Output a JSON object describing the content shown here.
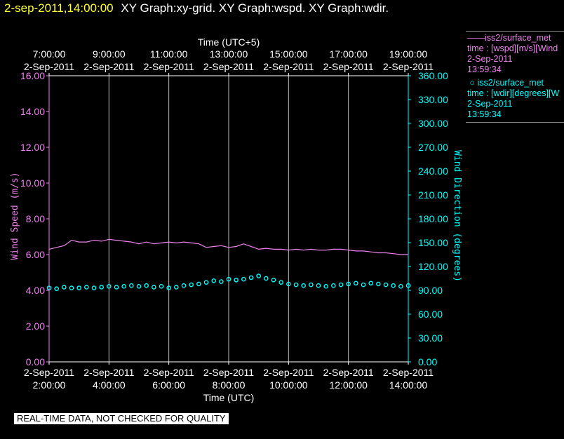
{
  "header": {
    "timestamp": "2-sep-2011,14:00:00",
    "titles": "XY Graph:xy-grid.  XY Graph:wspd.  XY Graph:wdir."
  },
  "legend": {
    "wspd": {
      "marker": "——",
      "source": "iss2/surface_met",
      "desc": "time : [wspd][m/s][Wind",
      "date": "2-Sep-2011",
      "time": "13:59:34",
      "color": "#ee82ee"
    },
    "wdir": {
      "marker": "○",
      "source": "iss2/surface_met",
      "desc": "time : [wdir][degrees][W",
      "date": "2-Sep-2011",
      "time": "13:59:34",
      "color": "#00ffff"
    }
  },
  "quality_notice": "REAL-TIME DATA, NOT CHECKED FOR QUALITY",
  "chart_data": {
    "type": "line",
    "top_axis": {
      "label": "Time (UTC+5)",
      "ticks": [
        {
          "time": "7:00:00",
          "date": "2-Sep-2011"
        },
        {
          "time": "9:00:00",
          "date": "2-Sep-2011"
        },
        {
          "time": "11:00:00",
          "date": "2-Sep-2011"
        },
        {
          "time": "13:00:00",
          "date": "2-Sep-2011"
        },
        {
          "time": "15:00:00",
          "date": "2-Sep-2011"
        },
        {
          "time": "17:00:00",
          "date": "2-Sep-2011"
        },
        {
          "time": "19:00:00",
          "date": "2-Sep-2011"
        }
      ]
    },
    "bottom_axis": {
      "label": "Time (UTC)",
      "range_hours": [
        2,
        14
      ],
      "ticks": [
        {
          "hour": 2,
          "date": "2-Sep-2011",
          "time": "2:00:00"
        },
        {
          "hour": 4,
          "date": "2-Sep-2011",
          "time": "4:00:00"
        },
        {
          "hour": 6,
          "date": "2-Sep-2011",
          "time": "6:00:00"
        },
        {
          "hour": 8,
          "date": "2-Sep-2011",
          "time": "8:00:00"
        },
        {
          "hour": 10,
          "date": "2-Sep-2011",
          "time": "10:00:00"
        },
        {
          "hour": 12,
          "date": "2-Sep-2011",
          "time": "12:00:00"
        },
        {
          "hour": 14,
          "date": "2-Sep-2011",
          "time": "14:00:00"
        }
      ]
    },
    "left_axis": {
      "label": "Wind Speed (m/s)",
      "ylim": [
        0,
        16
      ],
      "ticks": [
        "0.00",
        "2.00",
        "4.00",
        "6.00",
        "8.00",
        "10.00",
        "12.00",
        "14.00",
        "16.00"
      ],
      "color": "#ee82ee"
    },
    "right_axis": {
      "label": "Wind Direction (degrees)",
      "ylim": [
        0,
        360
      ],
      "ticks": [
        "0.00",
        "30.00",
        "60.00",
        "90.00",
        "120.00",
        "150.00",
        "180.00",
        "210.00",
        "240.00",
        "270.00",
        "300.00",
        "330.00",
        "360.00"
      ],
      "color": "#00ffff"
    },
    "grid": true,
    "series": [
      {
        "axis": "left",
        "color": "#ee82ee",
        "style": "line",
        "x": [
          2.0,
          2.25,
          2.5,
          2.75,
          3.0,
          3.25,
          3.5,
          3.75,
          4.0,
          4.25,
          4.5,
          4.75,
          5.0,
          5.25,
          5.5,
          5.75,
          6.0,
          6.25,
          6.5,
          6.75,
          7.0,
          7.25,
          7.5,
          7.75,
          8.0,
          8.25,
          8.5,
          8.75,
          9.0,
          9.25,
          9.5,
          9.75,
          10.0,
          10.25,
          10.5,
          10.75,
          11.0,
          11.25,
          11.5,
          11.75,
          12.0,
          12.25,
          12.5,
          12.75,
          13.0,
          13.25,
          13.5,
          13.75,
          14.0
        ],
        "values": [
          6.3,
          6.4,
          6.5,
          6.8,
          6.7,
          6.7,
          6.8,
          6.75,
          6.85,
          6.8,
          6.75,
          6.7,
          6.6,
          6.7,
          6.6,
          6.65,
          6.7,
          6.65,
          6.7,
          6.65,
          6.6,
          6.4,
          6.45,
          6.5,
          6.4,
          6.45,
          6.6,
          6.45,
          6.3,
          6.35,
          6.3,
          6.3,
          6.25,
          6.3,
          6.25,
          6.3,
          6.25,
          6.25,
          6.3,
          6.3,
          6.25,
          6.2,
          6.2,
          6.15,
          6.1,
          6.1,
          6.05,
          6.0,
          6.0
        ]
      },
      {
        "axis": "right",
        "color": "#00ffff",
        "style": "scatter",
        "x": [
          2.0,
          2.25,
          2.5,
          2.75,
          3.0,
          3.25,
          3.5,
          3.75,
          4.0,
          4.25,
          4.5,
          4.75,
          5.0,
          5.25,
          5.5,
          5.75,
          6.0,
          6.25,
          6.5,
          6.75,
          7.0,
          7.25,
          7.5,
          7.75,
          8.0,
          8.25,
          8.5,
          8.75,
          9.0,
          9.25,
          9.5,
          9.75,
          10.0,
          10.25,
          10.5,
          10.75,
          11.0,
          11.25,
          11.5,
          11.75,
          12.0,
          12.25,
          12.5,
          12.75,
          13.0,
          13.25,
          13.5,
          13.75,
          14.0
        ],
        "values": [
          93,
          92,
          94,
          93,
          93,
          94,
          93,
          94,
          95,
          94,
          95,
          96,
          95,
          96,
          94,
          95,
          93,
          94,
          96,
          97,
          98,
          100,
          102,
          101,
          104,
          103,
          104,
          106,
          108,
          105,
          103,
          100,
          98,
          97,
          96,
          97,
          96,
          95,
          96,
          97,
          98,
          99,
          97,
          99,
          98,
          97,
          96,
          95,
          96
        ]
      }
    ]
  }
}
